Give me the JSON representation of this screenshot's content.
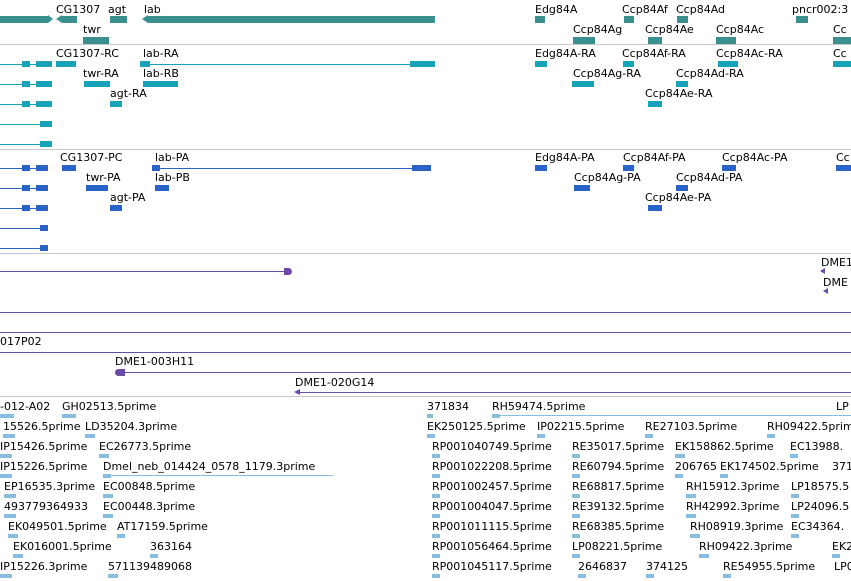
{
  "colors": {
    "gene": "#3a8f8f",
    "transcript_rna": "#17a2b8",
    "transcript_protein": "#2a63c8",
    "clone": "#6a4ca6",
    "est": "#87bde0",
    "separator": "#c8c8c8"
  },
  "tracks": {
    "genes": {
      "labels": [
        "CG1307",
        "agt",
        "lab",
        "twr",
        "Edg84A",
        "Ccp84Af",
        "Ccp84Ad",
        "pncr002:3",
        "Ccp84Ag",
        "Ccp84Ae",
        "Ccp84Ac",
        "Cc"
      ]
    },
    "transcripts_rna": {
      "labels": [
        "CG1307-RC",
        "lab-RA",
        "twr-RA",
        "lab-RB",
        "agt-RA",
        "Edg84A-RA",
        "Ccp84Af-RA",
        "Ccp84Ac-RA",
        "Ccp84Ag-RA",
        "Ccp84Ad-RA",
        "Ccp84Ae-RA",
        "Cc"
      ]
    },
    "transcripts_protein": {
      "labels": [
        "CG1307-PC",
        "lab-PA",
        "twr-PA",
        "lab-PB",
        "agt-PA",
        "Edg84A-PA",
        "Ccp84Af-PA",
        "Ccp84Ac-PA",
        "Ccp84Ag-PA",
        "Ccp84Ad-PA",
        "Ccp84Ae-PA",
        "Cc"
      ]
    },
    "clones": {
      "labels": [
        "DME1",
        "DME",
        "017P02",
        "DME1-003H11",
        "DME1-020G14"
      ]
    },
    "ests": {
      "labels": [
        "-012-A02",
        "GH02513.5prime",
        "371834",
        "RH59474.5prime",
        "LP",
        "15526.5prime",
        "LD35204.3prime",
        "EK250125.5prime",
        "IP02215.5prime",
        "RE27103.5prime",
        "RH09422.5prime",
        "IP15426.5prime",
        "EC26773.5prime",
        "RP001040749.5prime",
        "RE35017.5prime",
        "EK158862.5prime",
        "EC13988.",
        "IP15226.5prime",
        "Dmel_neb_014424_0578_1179.3prime",
        "RP001022208.5prime",
        "RE60794.5prime",
        "206765",
        "EK174502.5prime",
        "371",
        "EP16535.3prime",
        "EC00848.5prime",
        "RP001002457.5prime",
        "RE68817.5prime",
        "RH15912.3prime",
        "LP18575.5",
        "493779364933",
        "EC00448.3prime",
        "RP001004047.5prime",
        "RE39132.5prime",
        "RH42992.3prime",
        "LP24096.5",
        "EK049501.5prime",
        "AT17159.5prime",
        "RP001011115.5prime",
        "RE68385.5prime",
        "RH08919.3prime",
        "EC34364.",
        "EK016001.5prime",
        "363164",
        "RP001056464.5prime",
        "LP08221.5prime",
        "RH09422.3prime",
        "EK2",
        "IP15226.3prime",
        "571139489068",
        "RP001045117.5prime",
        "2646837",
        "374125",
        "RE54955.5prime",
        "LP0"
      ]
    }
  }
}
